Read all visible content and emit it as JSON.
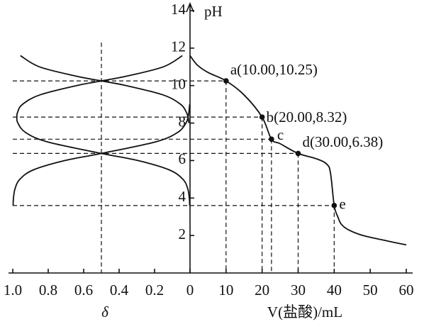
{
  "chart_data": {
    "type": "titration",
    "ylabel": "pH",
    "xlabel": "V(盐酸)/mL",
    "ylim": [
      0,
      14
    ],
    "yticks": [
      2,
      4,
      6,
      8,
      10,
      12,
      14
    ],
    "xlim": [
      0,
      60
    ],
    "xticks": [
      0,
      10,
      20,
      30,
      40,
      50,
      60
    ],
    "color": "#111111",
    "x": [
      0,
      2,
      5,
      10,
      15,
      20,
      22.6,
      25,
      30,
      35,
      38,
      39,
      40,
      41,
      42,
      44,
      48,
      55,
      60
    ],
    "values": [
      11.6,
      11.1,
      10.7,
      10.25,
      9.5,
      8.32,
      7.14,
      6.9,
      6.38,
      6.1,
      5.8,
      5.3,
      3.6,
      3.0,
      2.6,
      2.3,
      2.0,
      1.7,
      1.5
    ],
    "points": [
      {
        "label": "a(10.00,10.25)",
        "x": 10,
        "y": 10.25
      },
      {
        "label": "b(20.00,8.32)",
        "x": 20,
        "y": 8.32
      },
      {
        "label": "c",
        "x": 22.6,
        "y": 7.14
      },
      {
        "label": "d(30.00,6.38)",
        "x": 30,
        "y": 6.38
      },
      {
        "label": "e",
        "x": 40,
        "y": 3.6
      }
    ],
    "delta": {
      "xlabel": "δ",
      "xlim": [
        0,
        1
      ],
      "xticks": [
        {
          "value": 1,
          "label": "1.0"
        },
        {
          "value": 0.8,
          "label": "0.8"
        },
        {
          "value": 0.6,
          "label": "0.6"
        },
        {
          "value": 0.4,
          "label": "0.4"
        },
        {
          "value": 0.2,
          "label": "0.2"
        }
      ],
      "pH": [
        3.6,
        4,
        4.5,
        5,
        5.5,
        6,
        6.38,
        7,
        7.5,
        8,
        8.32,
        8.6,
        9,
        9.5,
        10,
        10.25,
        10.5,
        11,
        11.6
      ],
      "series": [
        {
          "color": "#111111",
          "values": [
            0.998,
            0.996,
            0.987,
            0.96,
            0.884,
            0.706,
            0.5,
            0.193,
            0.07,
            0.023,
            0.011,
            0.006,
            0.002,
            null,
            null,
            null,
            null,
            null,
            null
          ]
        },
        {
          "color": "#111111",
          "values": [
            0.002,
            0.004,
            0.013,
            0.04,
            0.117,
            0.294,
            0.5,
            0.806,
            0.928,
            0.971,
            0.977,
            0.972,
            0.945,
            0.848,
            0.64,
            0.5,
            0.36,
            0.151,
            0.043
          ]
        },
        {
          "color": "#111111",
          "values": [
            null,
            null,
            null,
            null,
            null,
            null,
            null,
            null,
            null,
            0.006,
            0.011,
            0.022,
            0.053,
            0.151,
            0.36,
            0.5,
            0.64,
            0.849,
            0.957
          ]
        }
      ]
    }
  }
}
